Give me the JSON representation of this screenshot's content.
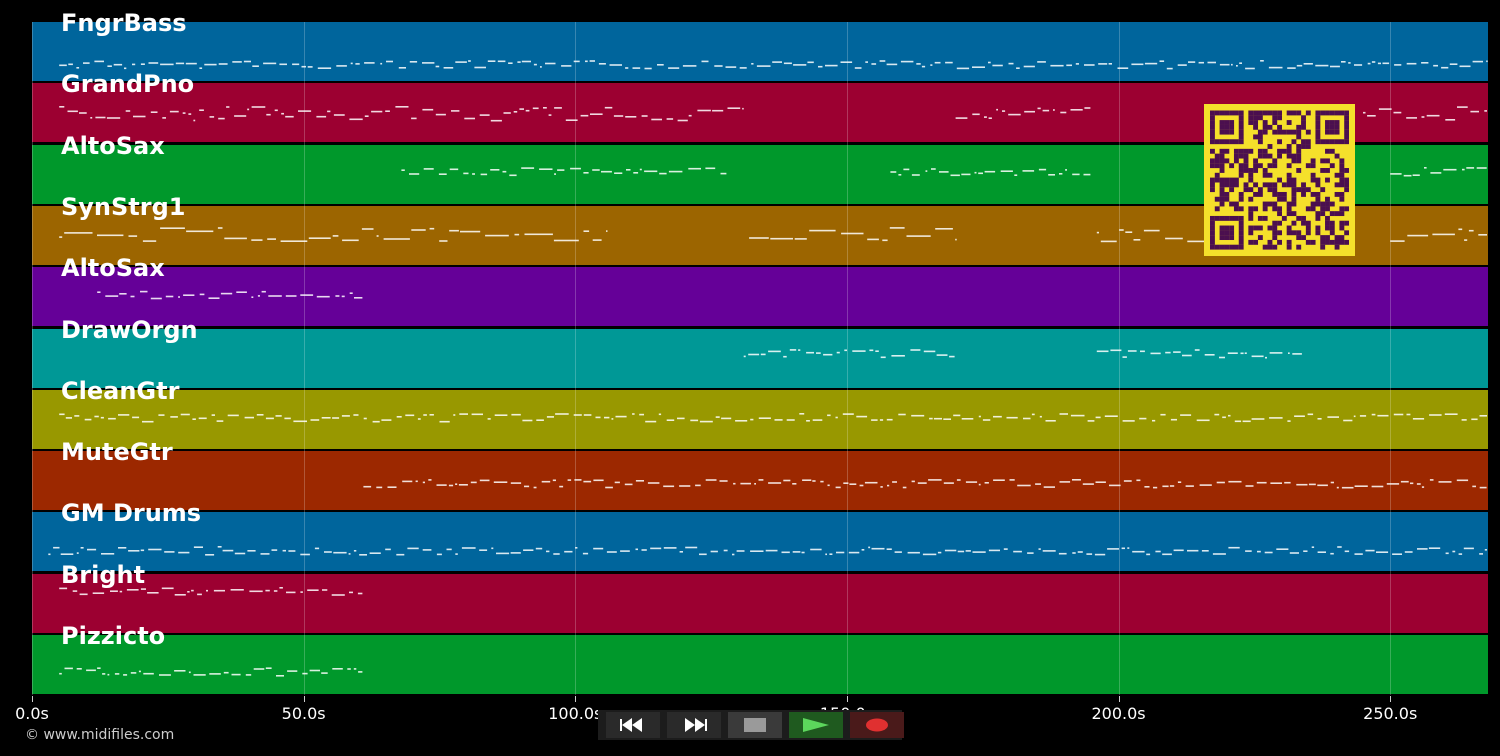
{
  "tracks": [
    {
      "name": "FngrBass",
      "color": "#00659c"
    },
    {
      "name": "GrandPno",
      "color": "#9c0031"
    },
    {
      "name": "AltoSax",
      "color": "#00982b"
    },
    {
      "name": "SynStrg1",
      "color": "#9c6500"
    },
    {
      "name": "AltoSax",
      "color": "#650098"
    },
    {
      "name": "DrawOrgn",
      "color": "#009896"
    },
    {
      "name": "CleanGtr",
      "color": "#989800"
    },
    {
      "name": "MuteGtr",
      "color": "#9c2800"
    },
    {
      "name": "GM Drums",
      "color": "#00659c"
    },
    {
      "name": "Bright",
      "color": "#9c0031"
    },
    {
      "name": "Pizzicto",
      "color": "#00982b"
    }
  ],
  "timeline": {
    "ticks": [
      "0.0s",
      "50.0s",
      "100.0s",
      "150.0s",
      "200.0s",
      "250.0s"
    ],
    "tick_seconds": [
      0,
      50,
      100,
      150,
      200,
      250
    ],
    "max_seconds": 268
  },
  "copyright": "© www.midifiles.com",
  "transport": {
    "buttons": [
      "rewind-icon",
      "fast-forward-icon",
      "stop-icon",
      "play-icon",
      "record-icon"
    ]
  },
  "colors": {
    "background": "#000000",
    "qr_background": "#f5e02b",
    "qr_modules": "#4b0f4f",
    "play": "#5cd65c",
    "record": "#e03030"
  }
}
